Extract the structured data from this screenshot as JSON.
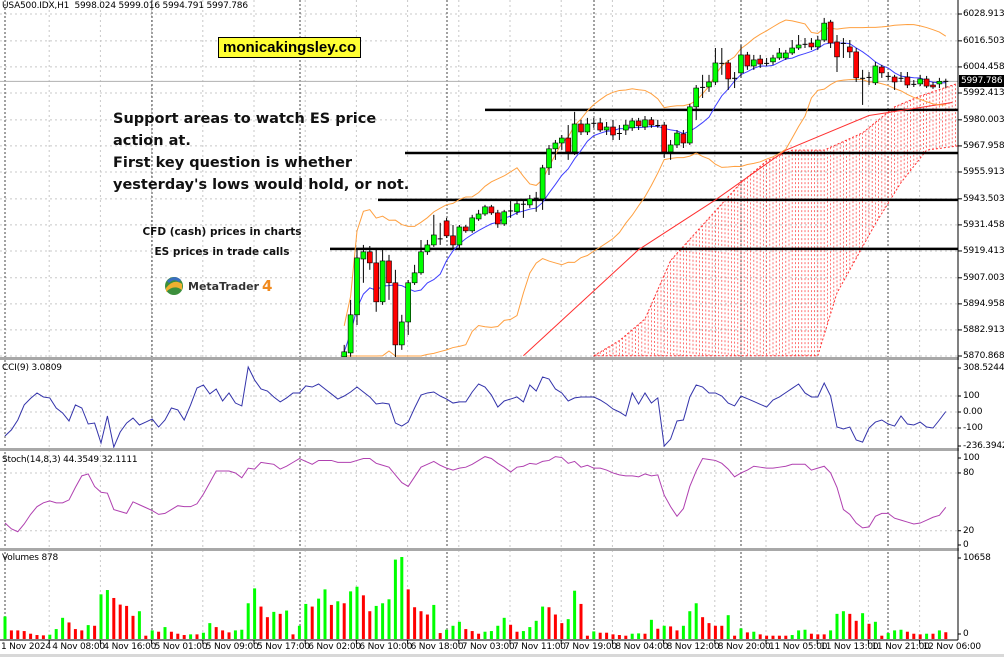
{
  "header": {
    "symbol": "USA500.IDX,H1",
    "ohlc": "5998.024 5999.016 5994.791 5997.786"
  },
  "annotations": {
    "brand": "monicakingsley.co",
    "note_lines": [
      "Support areas to watch ES price",
      "action at.",
      "First key question is whether",
      "yesterday's lows would hold, or not."
    ],
    "cfd_note": "CFD (cash) prices in charts",
    "es_note": "ES prices in trade calls",
    "platform_name": "MetaTrader",
    "platform_version": "4"
  },
  "current_price_label": "5997.786",
  "colors": {
    "bull": "#00ff00",
    "bear": "#ff0000",
    "bollinger": "#ffa040",
    "fast_ma": "#4040ff",
    "slow_ma": "#ff3030",
    "cci": "#3333aa",
    "stoch": "#b040b0",
    "support": "#000000"
  },
  "chart_data": [
    {
      "type": "candlestick",
      "title": "USA500.IDX,H1",
      "x_tick_labels": [
        "1 Nov 2024",
        "4 Nov 08:00",
        "4 Nov 16:00",
        "5 Nov 01:00",
        "5 Nov 09:00",
        "5 Nov 17:00",
        "6 Nov 02:00",
        "6 Nov 10:00",
        "6 Nov 18:00",
        "7 Nov 03:00",
        "7 Nov 11:00",
        "7 Nov 19:00",
        "8 Nov 04:00",
        "8 Nov 12:00",
        "8 Nov 20:00",
        "11 Nov 05:00",
        "11 Nov 13:00",
        "11 Nov 21:00",
        "12 Nov 06:00"
      ],
      "y_tick_labels": [
        "6028.913",
        "6016.503",
        "6004.458",
        "5992.413",
        "5980.003",
        "5967.958",
        "5955.913",
        "5943.503",
        "5931.458",
        "5919.413",
        "5907.003",
        "5894.958",
        "5882.913",
        "5870.868"
      ],
      "ylim": [
        5870.868,
        6028.913
      ],
      "grid": true,
      "candles_ohlc": [
        [
          5870.5,
          5876,
          5870,
          5872.8
        ],
        [
          5872.3,
          5896.8,
          5870.5,
          5889.9
        ],
        [
          5889.9,
          5919.9,
          5885.2,
          5916.2
        ],
        [
          5915.7,
          5922.2,
          5904.7,
          5919.0
        ],
        [
          5919.0,
          5921.7,
          5910.7,
          5913.9
        ],
        [
          5913.9,
          5920.8,
          5891.3,
          5895.9
        ],
        [
          5895.9,
          5920.8,
          5894.5,
          5914.8
        ],
        [
          5914.8,
          5917.6,
          5896.8,
          5904.7
        ],
        [
          5904.7,
          5910.7,
          5870,
          5876.0
        ],
        [
          5876.0,
          5889.9,
          5873.7,
          5886.6
        ],
        [
          5886.6,
          5906.0,
          5880.6,
          5904.7
        ],
        [
          5904.7,
          5913.0,
          5903.7,
          5909.3
        ],
        [
          5909.3,
          5924.5,
          5908.4,
          5919.0
        ],
        [
          5919.0,
          5924.5,
          5917.6,
          5922.2
        ],
        [
          5922.2,
          5936.1,
          5921.3,
          5926.8
        ],
        [
          5924.5,
          5932.4,
          5922.2,
          5925.0
        ],
        [
          5933.3,
          5934.7,
          5925.4,
          5926.4
        ],
        [
          5926.4,
          5931.4,
          5920.8,
          5922.2
        ],
        [
          5922.2,
          5931.4,
          5920.8,
          5930.5
        ],
        [
          5930.5,
          5931.4,
          5927.8,
          5928.7
        ],
        [
          5928.7,
          5936.1,
          5927.8,
          5934.7
        ],
        [
          5934.2,
          5938.4,
          5933.3,
          5936.5
        ],
        [
          5936.5,
          5940.7,
          5935.6,
          5939.8
        ],
        [
          5939.8,
          5940.7,
          5936.1,
          5937.0
        ],
        [
          5937.0,
          5938.4,
          5930.1,
          5931.9
        ],
        [
          5931.9,
          5938.4,
          5931.0,
          5937.5
        ],
        [
          5937.9,
          5943.0,
          5934.7,
          5937.9
        ],
        [
          5937.5,
          5943.0,
          5936.1,
          5941.2
        ],
        [
          5941.2,
          5943.0,
          5934.7,
          5941.0
        ],
        [
          5940.7,
          5945.3,
          5939.3,
          5943.5
        ],
        [
          5944.0,
          5946.7,
          5937.5,
          5943.8
        ],
        [
          5943.5,
          5959.2,
          5938.4,
          5957.8
        ],
        [
          5957.8,
          5968.4,
          5954.5,
          5966.6
        ],
        [
          5966.6,
          5970.7,
          5961.5,
          5969.3
        ],
        [
          5969.3,
          5973.0,
          5966.1,
          5971.6
        ],
        [
          5971.6,
          5977.6,
          5961.5,
          5965.2
        ],
        [
          5965.2,
          5983.7,
          5963.8,
          5978.1
        ],
        [
          5978.1,
          5980.0,
          5973.0,
          5974.4
        ],
        [
          5974.4,
          5980.9,
          5973.0,
          5978.1
        ],
        [
          5978.6,
          5980.9,
          5976.3,
          5978.4
        ],
        [
          5978.6,
          5980.9,
          5974.4,
          5975.3
        ],
        [
          5975.3,
          5979.0,
          5973.0,
          5976.7
        ],
        [
          5976.7,
          5980.0,
          5970.7,
          5973.0
        ],
        [
          5973.9,
          5977.6,
          5970.7,
          5973.7
        ],
        [
          5975.3,
          5980.0,
          5973.0,
          5977.6
        ],
        [
          5976.3,
          5980.9,
          5974.9,
          5979.5
        ],
        [
          5979.5,
          5980.9,
          5975.3,
          5977.2
        ],
        [
          5976.7,
          5981.8,
          5975.3,
          5980.0
        ],
        [
          5980.0,
          5981.3,
          5976.3,
          5977.6
        ],
        [
          5977.6,
          5980.0,
          5976.3,
          5977.4
        ],
        [
          5977.6,
          5979.0,
          5962.4,
          5965.2
        ],
        [
          5965.2,
          5970.7,
          5961.5,
          5968.4
        ],
        [
          5968.4,
          5975.3,
          5967.0,
          5973.9
        ],
        [
          5973.5,
          5975.3,
          5967.0,
          5969.3
        ],
        [
          5969.3,
          5987.4,
          5968.4,
          5986.0
        ],
        [
          5986.0,
          5996.1,
          5980.0,
          5994.7
        ],
        [
          5995.2,
          6000.8,
          5990.1,
          5995.0
        ],
        [
          5995.2,
          6000.8,
          5992.9,
          5997.5
        ],
        [
          5997.5,
          6013.2,
          5996.1,
          6006.3
        ],
        [
          6006.3,
          6013.2,
          6000.8,
          6006.1
        ],
        [
          6006.3,
          6007.7,
          5993.8,
          5998.9
        ],
        [
          5999.4,
          6002.1,
          5994.7,
          5999.2
        ],
        [
          6001.7,
          6014.6,
          5999.4,
          6010.0
        ],
        [
          6010.0,
          6011.4,
          6003.1,
          6004.9
        ],
        [
          6004.9,
          6010.0,
          6003.1,
          6007.7
        ],
        [
          6008.1,
          6010.0,
          6004.0,
          6005.8
        ],
        [
          6006.3,
          6008.6,
          6004.9,
          6006.1
        ],
        [
          6006.8,
          6010.0,
          6005.4,
          6008.6
        ],
        [
          6008.6,
          6013.2,
          6007.7,
          6010.9
        ],
        [
          6008.6,
          6012.3,
          6007.7,
          6010.9
        ],
        [
          6010.9,
          6016.9,
          6010.0,
          6013.2
        ],
        [
          6013.2,
          6019.2,
          6012.3,
          6014.6
        ],
        [
          6015.1,
          6017.8,
          6013.2,
          6014.9
        ],
        [
          6015.5,
          6017.8,
          6012.3,
          6013.7
        ],
        [
          6013.7,
          6018.8,
          6012.3,
          6016.9
        ],
        [
          6016.9,
          6027.1,
          6016.0,
          6024.7
        ],
        [
          6025.2,
          6026.2,
          6013.2,
          6015.5
        ],
        [
          6016.0,
          6019.2,
          6002.1,
          6009.1
        ],
        [
          6015.5,
          6017.8,
          6008.6,
          6015.3
        ],
        [
          6013.7,
          6016.9,
          6008.6,
          6011.4
        ],
        [
          6011.4,
          6013.2,
          5997.5,
          5999.4
        ],
        [
          5999.4,
          6003.1,
          5986.9,
          5999.2
        ],
        [
          5999.8,
          6002.1,
          5996.1,
          5999.6
        ],
        [
          5997.1,
          6006.8,
          5996.1,
          6004.9
        ],
        [
          6004.4,
          6005.4,
          5999.4,
          6001.7
        ],
        [
          6000.3,
          6002.1,
          5998.4,
          6000.1
        ],
        [
          5999.8,
          6000.8,
          5993.8,
          5997.5
        ],
        [
          5999.4,
          6002.1,
          5997.5,
          5999.2
        ],
        [
          5999.8,
          6002.1,
          5994.7,
          5996.1
        ],
        [
          5996.6,
          5998.4,
          5995.2,
          5996.4
        ],
        [
          5996.6,
          6000.8,
          5995.6,
          5998.9
        ],
        [
          5998.9,
          6000.3,
          5994.7,
          5995.6
        ],
        [
          5996.1,
          5997.5,
          5994.3,
          5995.2
        ],
        [
          5996.6,
          5999.4,
          5994.7,
          5997.8
        ],
        [
          5998.024,
          5999.016,
          5994.791,
          5997.786
        ]
      ],
      "support_levels": [
        5984.6,
        5964.7,
        5943.0,
        5920.4
      ],
      "slow_ma_points": [
        [
          81,
          5871
        ],
        [
          99,
          5920
        ],
        [
          111,
          5943
        ],
        [
          122,
          5966
        ],
        [
          135,
          5982
        ],
        [
          148,
          5988
        ]
      ],
      "cloud_upper_points": [
        [
          92,
          5871
        ],
        [
          96,
          5878
        ],
        [
          100,
          5888
        ],
        [
          104,
          5915
        ],
        [
          115,
          5951
        ],
        [
          119,
          5961
        ],
        [
          123,
          5966
        ],
        [
          128,
          5966
        ],
        [
          134,
          5974
        ],
        [
          139,
          5986
        ],
        [
          143,
          5991
        ],
        [
          149,
          5997
        ]
      ],
      "cloud_lower_points": [
        [
          92,
          5871
        ],
        [
          127,
          5871
        ],
        [
          130,
          5900
        ],
        [
          136,
          5932
        ],
        [
          140,
          5951
        ],
        [
          144,
          5966
        ],
        [
          149,
          5968
        ]
      ]
    },
    {
      "type": "line",
      "name": "CCI(9)",
      "last_value": "3.0809",
      "y_tick_labels": [
        "308.5244",
        "100",
        "0.00",
        "-100",
        "-236.3942"
      ],
      "ylim": [
        -236.3942,
        308.5244
      ],
      "values": [
        -150,
        -112,
        -50,
        44,
        85,
        119,
        94,
        88,
        25,
        -6,
        -56,
        44,
        25,
        -75,
        -69,
        -194,
        -25,
        -219,
        -125,
        -69,
        -38,
        -81,
        -63,
        -44,
        -94,
        -50,
        25,
        13,
        -50,
        44,
        150,
        169,
        113,
        144,
        69,
        119,
        56,
        38,
        281,
        200,
        144,
        131,
        94,
        63,
        88,
        119,
        119,
        163,
        156,
        175,
        144,
        113,
        81,
        100,
        125,
        156,
        125,
        94,
        50,
        56,
        50,
        -69,
        -88,
        -63,
        25,
        106,
        119,
        125,
        100,
        81,
        56,
        63,
        63,
        125,
        175,
        156,
        106,
        31,
        69,
        81,
        94,
        63,
        169,
        131,
        219,
        206,
        144,
        119,
        69,
        88,
        94,
        94,
        94,
        75,
        50,
        19,
        0,
        -25,
        119,
        50,
        119,
        56,
        88,
        -213,
        -169,
        -56,
        -50,
        94,
        169,
        156,
        119,
        119,
        100,
        56,
        38,
        100,
        83,
        66,
        48,
        31,
        75,
        94,
        121,
        148,
        175,
        119,
        94,
        94,
        181,
        100,
        -94,
        -106,
        -94,
        -175,
        -188,
        -100,
        -63,
        -50,
        -75,
        -88,
        -25,
        -75,
        -81,
        -63,
        -94,
        -100,
        -50,
        3.0809
      ]
    },
    {
      "type": "line",
      "name": "Stoch(14,8,3)",
      "main_value": "44.3549",
      "signal_value": "32.1111",
      "y_tick_labels": [
        "100",
        "80",
        "20",
        "0"
      ],
      "ylim": [
        0,
        100
      ],
      "values": [
        28,
        22,
        19,
        27,
        37,
        45,
        49,
        51,
        49,
        49,
        52,
        65,
        77,
        79,
        66,
        60,
        59,
        42,
        40,
        38,
        50,
        47,
        44,
        41,
        37,
        38,
        42,
        46,
        45,
        45,
        48,
        58,
        70,
        82,
        82,
        82,
        80,
        75,
        85,
        84,
        91,
        90,
        89,
        84,
        87,
        91,
        95,
        92,
        89,
        93,
        93,
        93,
        91,
        91,
        91,
        93,
        95,
        95,
        90,
        88,
        86,
        78,
        70,
        66,
        76,
        86,
        89,
        92,
        88,
        85,
        83,
        85,
        86,
        89,
        93,
        97,
        95,
        90,
        86,
        81,
        86,
        87,
        90,
        89,
        92,
        93,
        97,
        96,
        90,
        92,
        86,
        88,
        85,
        85,
        83,
        80,
        78,
        77,
        77,
        76,
        79,
        77,
        78,
        57,
        45,
        35,
        43,
        66,
        82,
        95,
        94,
        93,
        90,
        84,
        76,
        80,
        83,
        87,
        86,
        85,
        85,
        86,
        87,
        89,
        89,
        89,
        83,
        85,
        87,
        80,
        65,
        42,
        37,
        28,
        23,
        24,
        35,
        38,
        38,
        33,
        31,
        29,
        27,
        28,
        31,
        34,
        36,
        44.3549
      ]
    },
    {
      "type": "bar",
      "name": "Volumes",
      "last_value": "878",
      "y_tick_labels": [
        "10658",
        "0"
      ],
      "ylim": [
        0,
        10658
      ],
      "values": [
        2924,
        1118,
        1118,
        1032,
        688,
        516,
        473,
        559,
        1290,
        2752,
        2150,
        1290,
        1118,
        1806,
        1720,
        5805,
        6364,
        5332,
        4472,
        4300,
        3010,
        3612,
        430,
        1118,
        946,
        1548,
        946,
        688,
        516,
        602,
        602,
        817,
        2064,
        1548,
        1118,
        860,
        1118,
        1204,
        4644,
        6579,
        4214,
        2838,
        3526,
        3268,
        3698,
        602,
        1720,
        4558,
        4214,
        5246,
        6450,
        4429,
        4902,
        4644,
        6192,
        6794,
        5676,
        3612,
        4300,
        4644,
        5160,
        10320,
        10658,
        6450,
        4128,
        3612,
        3182,
        4429,
        774,
        1204,
        1720,
        2236,
        1290,
        1032,
        688,
        946,
        1032,
        1720,
        2752,
        1849,
        946,
        1032,
        1548,
        2365,
        4214,
        4128,
        3182,
        2064,
        2580,
        6278,
        4558,
        430,
        989,
        817,
        817,
        602,
        516,
        430,
        688,
        731,
        688,
        2494,
        1333,
        1720,
        1634,
        1118,
        1720,
        3612,
        4644,
        2838,
        2064,
        1720,
        1720,
        3096,
        430,
        1376,
        860,
        946,
        602,
        430,
        430,
        430,
        430,
        516,
        1118,
        1204,
        688,
        602,
        602,
        1118,
        3268,
        3612,
        3268,
        2365,
        3354,
        1978,
        2236,
        430,
        774,
        1118,
        1204,
        946,
        688,
        602,
        688,
        688,
        1118,
        878
      ]
    }
  ]
}
